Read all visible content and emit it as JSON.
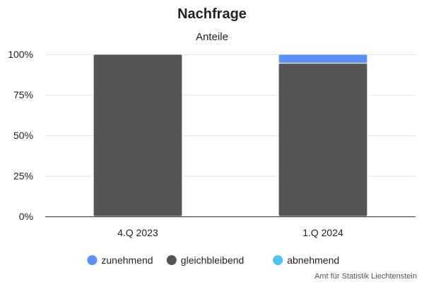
{
  "chart_data": {
    "type": "bar",
    "stacked": true,
    "percent": true,
    "title": "Nachfrage",
    "subtitle": "Anteile",
    "categories": [
      "4.Q 2023",
      "1.Q 2024"
    ],
    "series": [
      {
        "name": "zunehmend",
        "color": "#5b8ff9",
        "values": [
          0,
          5.5
        ]
      },
      {
        "name": "gleichbleibend",
        "color": "#555555",
        "values": [
          100,
          94.5
        ]
      },
      {
        "name": "abnehmend",
        "color": "#4cc3f3",
        "values": [
          0,
          0
        ]
      }
    ],
    "yticks": [
      "0%",
      "25%",
      "50%",
      "75%",
      "100%"
    ],
    "ylim": [
      0,
      100
    ],
    "grid": true,
    "legend_position": "bottom-center"
  },
  "credit": "Amt für Statistik Liechtenstein"
}
